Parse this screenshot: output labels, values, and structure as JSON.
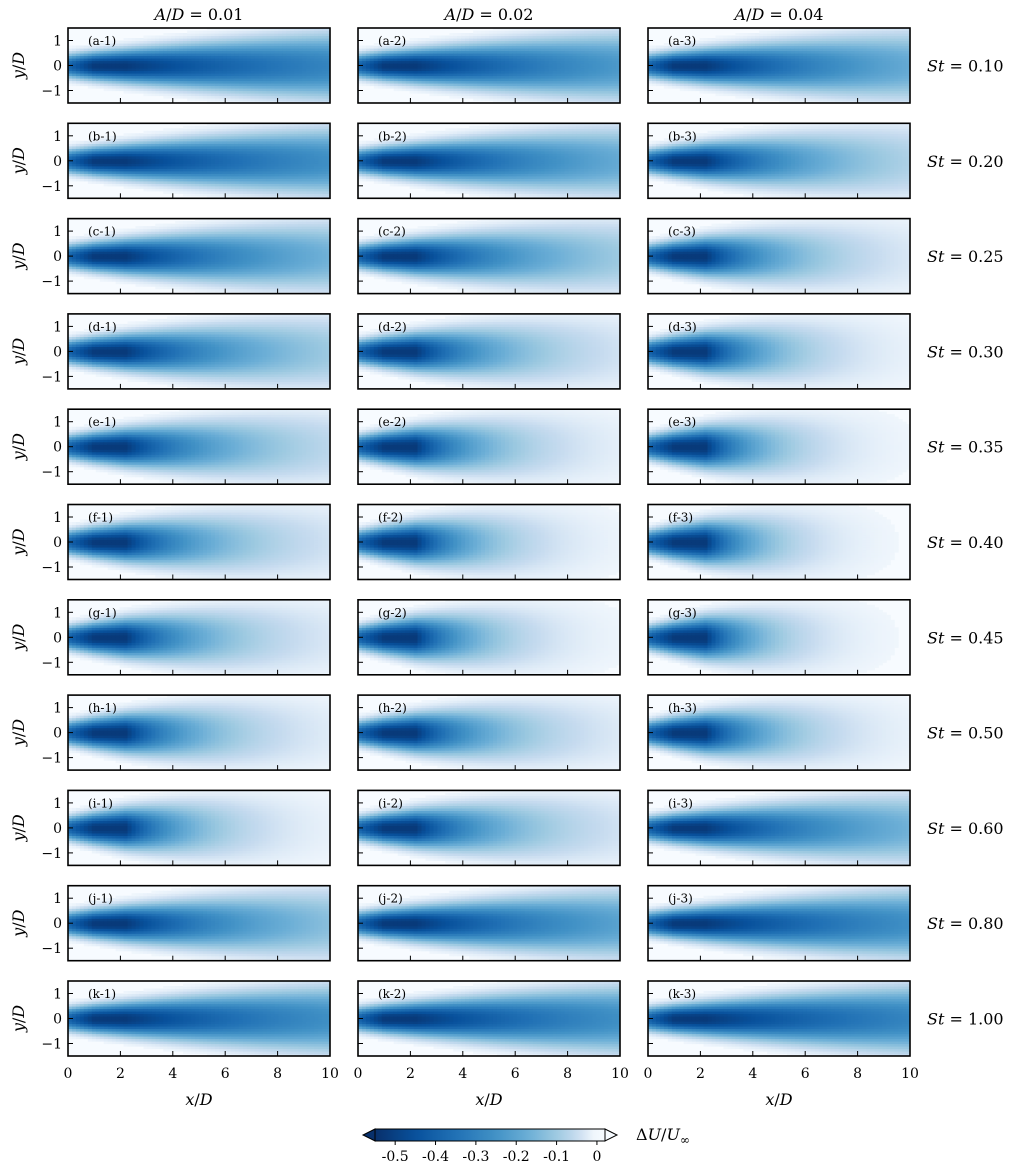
{
  "chart_data": {
    "type": "heatmap",
    "colormap": "Blues_r",
    "columns": [
      {
        "ratio_label": "A/D",
        "value": "0.01"
      },
      {
        "ratio_label": "A/D",
        "value": "0.02"
      },
      {
        "ratio_label": "A/D",
        "value": "0.04"
      }
    ],
    "rows": [
      {
        "param_label": "St",
        "value": "0.10",
        "panels": [
          "(a-1)",
          "(a-2)",
          "(a-3)"
        ],
        "decay": [
          0.05,
          0.07,
          0.09
        ]
      },
      {
        "param_label": "St",
        "value": "0.20",
        "panels": [
          "(b-1)",
          "(b-2)",
          "(b-3)"
        ],
        "decay": [
          0.06,
          0.09,
          0.16
        ]
      },
      {
        "param_label": "St",
        "value": "0.25",
        "panels": [
          "(c-1)",
          "(c-2)",
          "(c-3)"
        ],
        "decay": [
          0.1,
          0.14,
          0.24
        ]
      },
      {
        "param_label": "St",
        "value": "0.30",
        "panels": [
          "(d-1)",
          "(d-2)",
          "(d-3)"
        ],
        "decay": [
          0.14,
          0.22,
          0.3
        ]
      },
      {
        "param_label": "St",
        "value": "0.35",
        "panels": [
          "(e-1)",
          "(e-2)",
          "(e-3)"
        ],
        "decay": [
          0.18,
          0.28,
          0.34
        ]
      },
      {
        "param_label": "St",
        "value": "0.40",
        "panels": [
          "(f-1)",
          "(f-2)",
          "(f-3)"
        ],
        "decay": [
          0.22,
          0.32,
          0.38
        ]
      },
      {
        "param_label": "St",
        "value": "0.45",
        "panels": [
          "(g-1)",
          "(g-2)",
          "(g-3)"
        ],
        "decay": [
          0.24,
          0.33,
          0.38
        ]
      },
      {
        "param_label": "St",
        "value": "0.50",
        "panels": [
          "(h-1)",
          "(h-2)",
          "(h-3)"
        ],
        "decay": [
          0.26,
          0.25,
          0.3
        ]
      },
      {
        "param_label": "St",
        "value": "0.60",
        "panels": [
          "(i-1)",
          "(i-2)",
          "(i-3)"
        ],
        "decay": [
          0.3,
          0.22,
          0.1
        ]
      },
      {
        "param_label": "St",
        "value": "0.80",
        "panels": [
          "(j-1)",
          "(j-2)",
          "(j-3)"
        ],
        "decay": [
          0.12,
          0.08,
          0.06
        ]
      },
      {
        "param_label": "St",
        "value": "1.00",
        "panels": [
          "(k-1)",
          "(k-2)",
          "(k-3)"
        ],
        "decay": [
          0.06,
          0.06,
          0.05
        ]
      }
    ],
    "x_ticks": [
      "0",
      "2",
      "4",
      "6",
      "8",
      "10"
    ],
    "x_range": [
      0,
      10
    ],
    "y_ticks": [
      "1",
      "0",
      "−1"
    ],
    "y_range": [
      -1.5,
      1.5
    ],
    "xlabel": "x/D",
    "ylabel": "y/D",
    "colorbar": {
      "label": "ΔU/U∞",
      "ticks": [
        "-0.5",
        "-0.4",
        "-0.3",
        "-0.2",
        "-0.1",
        "0"
      ],
      "range": [
        -0.55,
        0.02
      ],
      "extend": "both"
    }
  }
}
